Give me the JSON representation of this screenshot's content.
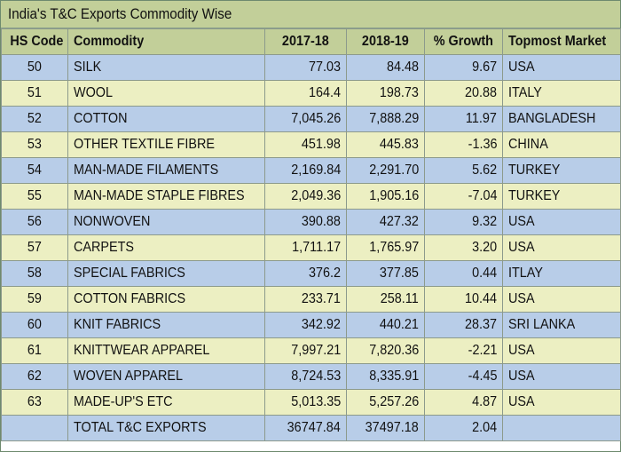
{
  "title": "India's T&C Exports Commodity Wise",
  "headers": {
    "hs_code": "HS Code",
    "commodity": "Commodity",
    "y2017": "2017-18",
    "y2018": "2018-19",
    "growth": "% Growth",
    "market": "Topmost Market"
  },
  "rows": [
    {
      "code": "50",
      "commodity": "SILK",
      "y2017": "77.03",
      "y2018": "84.48",
      "growth": "9.67",
      "market": "USA"
    },
    {
      "code": "51",
      "commodity": "WOOL",
      "y2017": "164.4",
      "y2018": "198.73",
      "growth": "20.88",
      "market": "ITALY"
    },
    {
      "code": "52",
      "commodity": "COTTON",
      "y2017": "7,045.26",
      "y2018": "7,888.29",
      "growth": "11.97",
      "market": "BANGLADESH"
    },
    {
      "code": "53",
      "commodity": "OTHER TEXTILE FIBRE",
      "y2017": "451.98",
      "y2018": "445.83",
      "growth": "-1.36",
      "market": "CHINA"
    },
    {
      "code": "54",
      "commodity": "MAN-MADE FILAMENTS",
      "y2017": "2,169.84",
      "y2018": "2,291.70",
      "growth": "5.62",
      "market": "TURKEY"
    },
    {
      "code": "55",
      "commodity": "MAN-MADE STAPLE FIBRES",
      "y2017": "2,049.36",
      "y2018": "1,905.16",
      "growth": "-7.04",
      "market": "TURKEY"
    },
    {
      "code": "56",
      "commodity": "NONWOVEN",
      "y2017": "390.88",
      "y2018": "427.32",
      "growth": "9.32",
      "market": "USA"
    },
    {
      "code": "57",
      "commodity": "CARPETS",
      "y2017": "1,711.17",
      "y2018": "1,765.97",
      "growth": "3.20",
      "market": "USA"
    },
    {
      "code": "58",
      "commodity": "SPECIAL FABRICS",
      "y2017": "376.2",
      "y2018": "377.85",
      "growth": "0.44",
      "market": "ITLAY"
    },
    {
      "code": "59",
      "commodity": "COTTON FABRICS",
      "y2017": "233.71",
      "y2018": "258.11",
      "growth": "10.44",
      "market": "USA"
    },
    {
      "code": "60",
      "commodity": "KNIT FABRICS",
      "y2017": "342.92",
      "y2018": "440.21",
      "growth": "28.37",
      "market": "SRI LANKA"
    },
    {
      "code": "61",
      "commodity": "KNITTWEAR APPAREL",
      "y2017": "7,997.21",
      "y2018": "7,820.36",
      "growth": "-2.21",
      "market": "USA"
    },
    {
      "code": "62",
      "commodity": "WOVEN APPAREL",
      "y2017": "8,724.53",
      "y2018": "8,335.91",
      "growth": "-4.45",
      "market": "USA"
    },
    {
      "code": "63",
      "commodity": "MADE-UP'S ETC",
      "y2017": "5,013.35",
      "y2018": "5,257.26",
      "growth": "4.87",
      "market": "USA"
    }
  ],
  "total": {
    "code": "",
    "commodity": "TOTAL T&C EXPORTS",
    "y2017": "36747.84",
    "y2018": "37497.18",
    "growth": "2.04",
    "market": ""
  },
  "colors": {
    "header_bg": "#c2cf99",
    "row_blue": "#b8cde8",
    "row_yellow": "#ecefc2",
    "border": "#8c9a8c"
  }
}
